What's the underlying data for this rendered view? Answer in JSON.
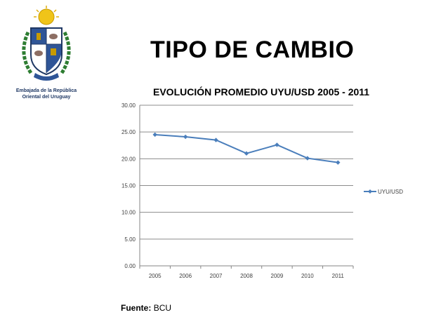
{
  "header": {
    "title": "TIPO DE CAMBIO",
    "embassy_line1": "Embajada de la República",
    "embassy_line2": "Oriental del Uruguay",
    "logo_icon": "uruguay-coat-of-arms-icon"
  },
  "footer": {
    "source_label": "Fuente:",
    "source_value": "BCU"
  },
  "chart_data": {
    "type": "line",
    "title": "EVOLUCIÓN PROMEDIO UYU/USD 2005 - 2011",
    "xlabel": "",
    "ylabel": "",
    "categories": [
      "2005",
      "2006",
      "2007",
      "2008",
      "2009",
      "2010",
      "2011"
    ],
    "series": [
      {
        "name": "UYU/USD",
        "values": [
          24.5,
          24.1,
          23.5,
          21.0,
          22.6,
          20.1,
          19.3
        ],
        "color": "#4a7ebb"
      }
    ],
    "ylim": [
      0,
      30
    ],
    "yticks": [
      "0.00",
      "5.00",
      "10.00",
      "15.00",
      "20.00",
      "25.00",
      "30.00"
    ],
    "grid": true,
    "legend": "right"
  }
}
